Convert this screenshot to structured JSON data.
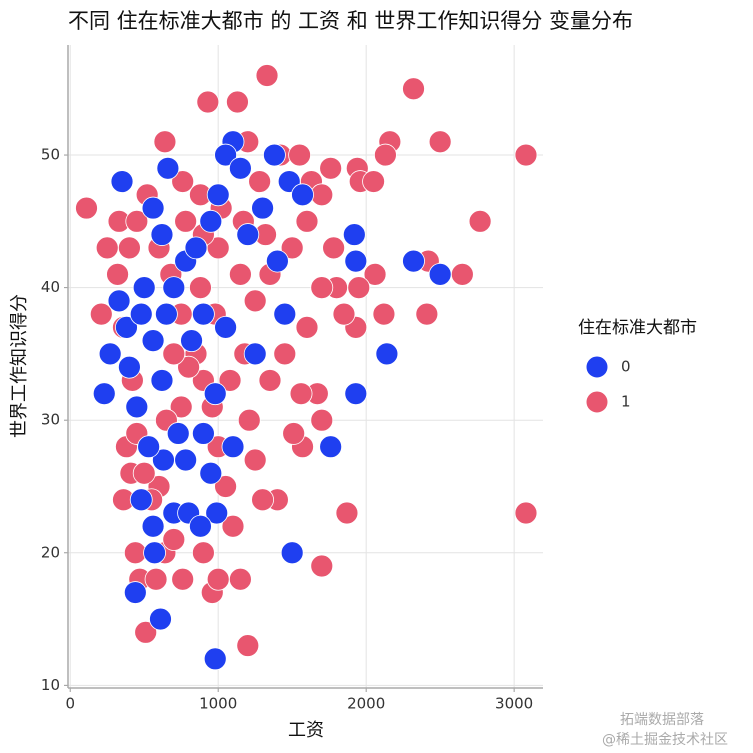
{
  "chart_data": {
    "type": "scatter",
    "title": "不同 住在标准大都市 的 工资 和 世界工作知识得分 变量分布",
    "x_label": "工资",
    "y_label": "世界工作知识得分",
    "legend_title": "住在标准大都市",
    "legend_position": "right",
    "grid": true,
    "xlim": [
      -15,
      3195
    ],
    "xticks": [
      0,
      1000,
      2000,
      3000
    ],
    "ylim": [
      9.8,
      58.3
    ],
    "yticks": [
      10,
      20,
      30,
      40,
      50
    ],
    "series": [
      {
        "name": "1",
        "color": "#e8566f",
        "x": [
          110,
          210,
          250,
          330,
          320,
          360,
          380,
          360,
          410,
          440,
          470,
          510,
          580,
          640,
          700,
          760,
          900,
          960,
          1000,
          1150,
          1200,
          1330,
          930,
          1130,
          2320,
          2500,
          3080,
          2160,
          2130,
          1940,
          1960,
          2050,
          2770,
          2650,
          2420,
          2410,
          2120,
          2060,
          1950,
          1930,
          1850,
          1870,
          3080,
          1700,
          1700,
          1670,
          1570,
          1510,
          1560,
          1400,
          1300,
          1250,
          1210,
          1100,
          1050,
          1000,
          960,
          900,
          850,
          800,
          750,
          700,
          650,
          600,
          550,
          500,
          450,
          420,
          640,
          760,
          880,
          1020,
          1170,
          1280,
          1420,
          1550,
          1630,
          1700,
          1760,
          1780,
          1800,
          1700,
          1600,
          1500,
          1350,
          1250,
          1150,
          1000,
          900,
          780,
          680,
          600,
          520,
          450,
          400,
          1600,
          1450,
          1350,
          1180,
          1080,
          980,
          880,
          750,
          1320,
          1200
        ],
        "values": [
          46,
          38,
          43,
          45,
          41,
          37,
          28,
          24,
          26,
          20,
          18,
          14,
          18,
          20,
          21,
          18,
          20,
          17,
          18,
          18,
          13,
          56,
          54,
          54,
          55,
          51,
          50,
          51,
          50,
          49,
          48,
          48,
          45,
          41,
          42,
          38,
          38,
          41,
          40,
          37,
          38,
          23,
          23,
          19,
          30,
          32,
          28,
          29,
          32,
          24,
          24,
          27,
          30,
          22,
          25,
          28,
          31,
          33,
          35,
          34,
          31,
          35,
          30,
          25,
          24,
          26,
          29,
          33,
          51,
          48,
          47,
          46,
          45,
          48,
          50,
          50,
          48,
          47,
          49,
          43,
          40,
          40,
          45,
          43,
          41,
          39,
          41,
          43,
          44,
          45,
          41,
          43,
          47,
          45,
          43,
          37,
          35,
          33,
          35,
          33,
          38,
          40,
          38,
          44,
          51
        ]
      },
      {
        "name": "0",
        "color": "#1f3ff0",
        "x": [
          350,
          560,
          1100,
          1380,
          1480,
          1570,
          2320,
          2500,
          1920,
          1930,
          2140,
          1930,
          1760,
          1500,
          980,
          610,
          440,
          570,
          560,
          230,
          270,
          330,
          380,
          400,
          450,
          500,
          620,
          660,
          700,
          780,
          850,
          900,
          950,
          1000,
          1050,
          1150,
          1200,
          1300,
          1400,
          1450,
          820,
          730,
          780,
          900,
          950,
          990,
          700,
          800,
          880,
          480,
          630,
          620,
          530,
          1100,
          980,
          1250,
          1050,
          650,
          480,
          560
        ],
        "values": [
          48,
          46,
          51,
          50,
          48,
          47,
          42,
          41,
          44,
          42,
          35,
          32,
          28,
          20,
          12,
          15,
          17,
          20,
          22,
          32,
          35,
          39,
          37,
          34,
          31,
          40,
          44,
          49,
          40,
          42,
          43,
          38,
          45,
          47,
          50,
          49,
          44,
          46,
          42,
          38,
          36,
          29,
          27,
          29,
          26,
          23,
          23,
          23,
          22,
          24,
          27,
          33,
          28,
          28,
          32,
          35,
          37,
          38,
          38,
          36
        ]
      }
    ],
    "watermark": [
      "拓端数据部落",
      "@稀土掘金技术社区"
    ]
  }
}
